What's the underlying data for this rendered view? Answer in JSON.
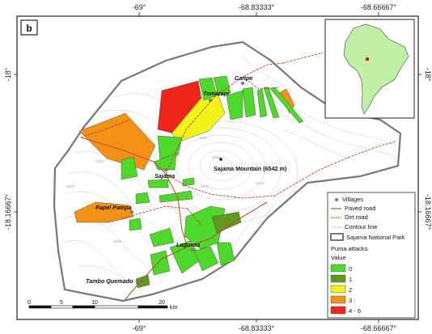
{
  "panel_label": "b",
  "axis": {
    "top": [
      "-69°",
      "-68.83333°",
      "-68.66667°"
    ],
    "bottom": [
      "-69°",
      "-68.83333°",
      "-68.66667°"
    ],
    "left": [
      "-18°",
      "-18.16667°"
    ],
    "right": [
      "-18°",
      "-18.16667°"
    ]
  },
  "villages": [
    "Caripe",
    "Tomarapi",
    "Sajama",
    "Papel Pampa",
    "Lagunas",
    "Tambo Quemado"
  ],
  "mountain_label": "Sajama Mountain (6542 m)",
  "contour_values": [
    "5000",
    "5000",
    "4500",
    "5500",
    "4500",
    "5000",
    "4000",
    "5000",
    "4500"
  ],
  "legend": {
    "items": [
      {
        "label": "Villages",
        "symbol": "dot"
      },
      {
        "label": "Paved road",
        "symbol": "paved"
      },
      {
        "label": "Dirt road",
        "symbol": "dirt"
      },
      {
        "label": "Contour line",
        "symbol": "contour"
      },
      {
        "label": "Sajama National Park",
        "symbol": "park"
      }
    ],
    "attacks_title": "Puma attacks",
    "value_title": "Value",
    "classes": [
      {
        "label": "0",
        "color": "#4dd82a"
      },
      {
        "label": "1",
        "color": "#5f9a1e"
      },
      {
        "label": "2",
        "color": "#f3f31b"
      },
      {
        "label": "3",
        "color": "#f39116"
      },
      {
        "label": "4 - 6",
        "color": "#f0261b"
      }
    ]
  },
  "scale_bar": {
    "ticks": [
      "0",
      "5",
      "10",
      "20"
    ],
    "unit": "km"
  },
  "inset": {
    "land_color": "#bff0a6",
    "marker_color": "#e0151a"
  }
}
